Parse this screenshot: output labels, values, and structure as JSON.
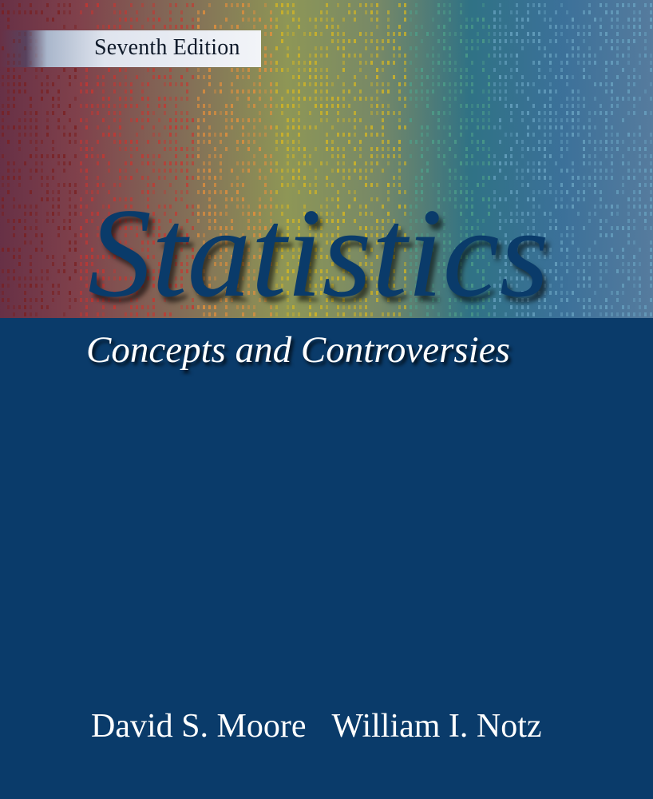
{
  "book": {
    "edition": "Seventh Edition",
    "title": "Statistics",
    "subtitle": "Concepts and Controversies",
    "authors": [
      "David S. Moore",
      "William I. Notz"
    ]
  },
  "colors": {
    "cover_blue": "#0a3b6a",
    "title_blue": "#0a3b6a",
    "text_white": "#ffffff"
  }
}
